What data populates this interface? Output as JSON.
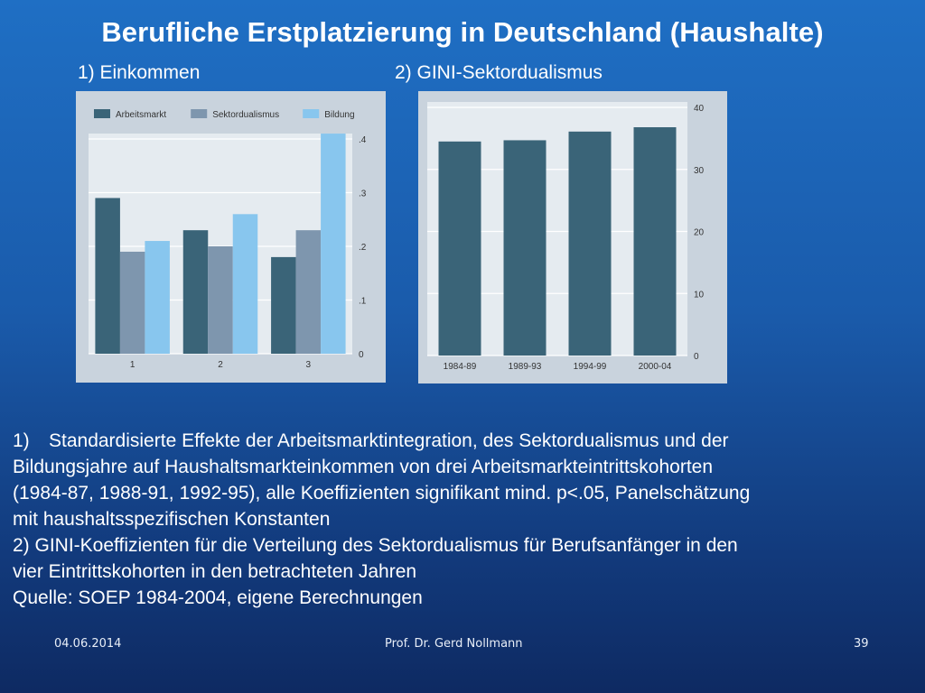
{
  "title": "Berufliche Erstplatzierung in Deutschland (Haushalte)",
  "subtitles": [
    "1) Einkommen",
    "2) GINI-Sektordualismus"
  ],
  "chart_data": [
    {
      "type": "bar",
      "categories": [
        "1",
        "2",
        "3"
      ],
      "series": [
        {
          "name": "Arbeitsmarkt",
          "color": "#3a6478",
          "values": [
            0.29,
            0.23,
            0.18
          ]
        },
        {
          "name": "Sektordualismus",
          "color": "#7e96ae",
          "values": [
            0.19,
            0.2,
            0.23
          ]
        },
        {
          "name": "Bildung",
          "color": "#88c6ee",
          "values": [
            0.21,
            0.26,
            0.41
          ]
        }
      ],
      "ylim": [
        0,
        0.4
      ],
      "yticks": [
        0,
        0.1,
        0.2,
        0.3,
        0.4
      ],
      "ytick_labels": [
        "0",
        ".1",
        ".2",
        ".3",
        ".4"
      ],
      "grid": true,
      "legend": "top"
    },
    {
      "type": "bar",
      "categories": [
        "1984-89",
        "1989-93",
        "1994-99",
        "2000-04"
      ],
      "series": [
        {
          "color": "#3a6478",
          "values": [
            34.5,
            34.7,
            36.1,
            36.8
          ]
        }
      ],
      "ylim": [
        0,
        40
      ],
      "yticks": [
        0,
        10,
        20,
        30,
        40
      ],
      "ytick_labels": [
        "0",
        "10",
        "20",
        "30",
        "40"
      ],
      "grid": true
    }
  ],
  "notes": {
    "n1_num": "1)",
    "n1_line1": "Standardisierte Effekte der Arbeitsmarktintegration, des Sektordualismus und der",
    "n1_line2": "Bildungsjahre auf Haushaltsmarkteinkommen von drei Arbeitsmarkteintrittskohorten",
    "n1_line3": "(1984-87, 1988-91, 1992-95), alle Koeffizienten signifikant mind. p<.05, Panelschätzung",
    "n1_line4": "mit haushaltsspezifischen Konstanten",
    "n2_line1": "2) GINI-Koeffizienten für die Verteilung des Sektordualismus für Berufsanfänger in den",
    "n2_line2": "vier Eintrittskohorten in den betrachteten Jahren",
    "source": "Quelle: SOEP 1984-2004, eigene Berechnungen"
  },
  "footer": {
    "date": "04.06.2014",
    "author": "Prof. Dr. Gerd Nollmann",
    "page": "39"
  }
}
